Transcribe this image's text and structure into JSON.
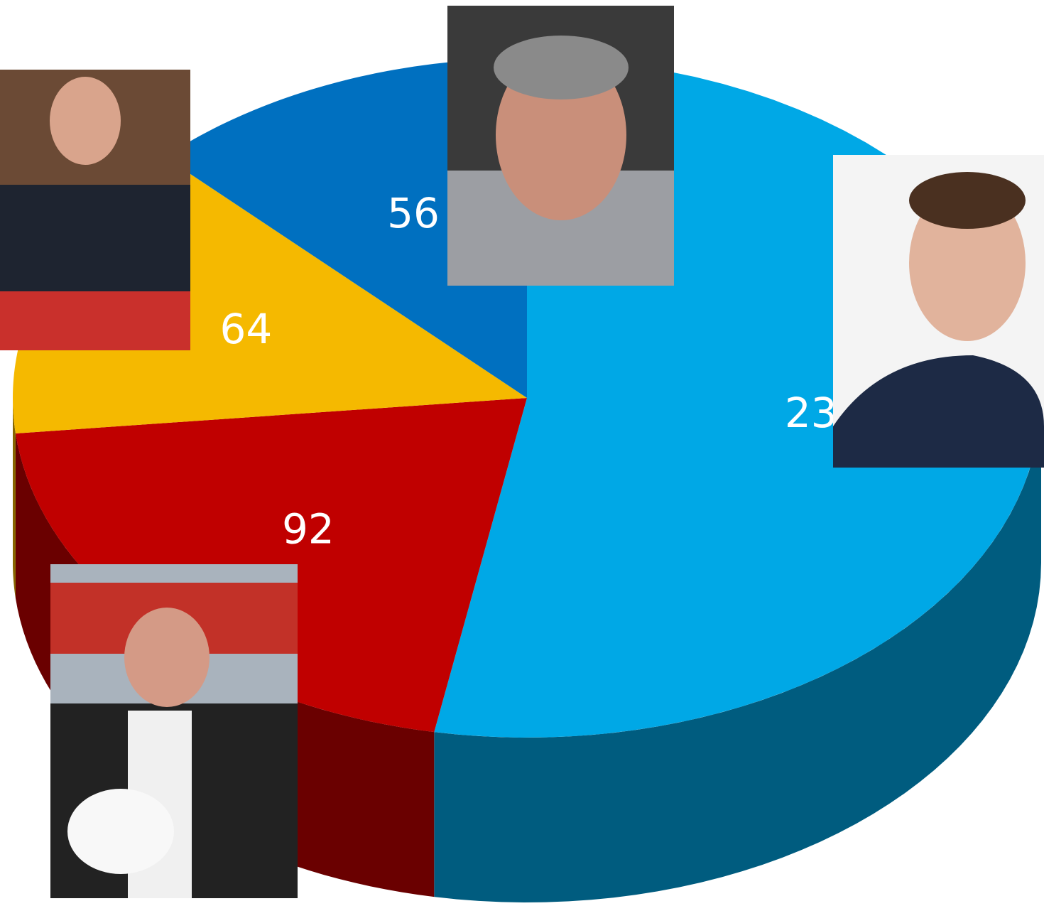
{
  "chart_data": {
    "type": "pie",
    "values": [
      238,
      92,
      64,
      56
    ],
    "colors": [
      "#00a8e6",
      "#c00000",
      "#f5b900",
      "#0070c0"
    ],
    "start_angle": 0,
    "direction": "clockwise"
  }
}
